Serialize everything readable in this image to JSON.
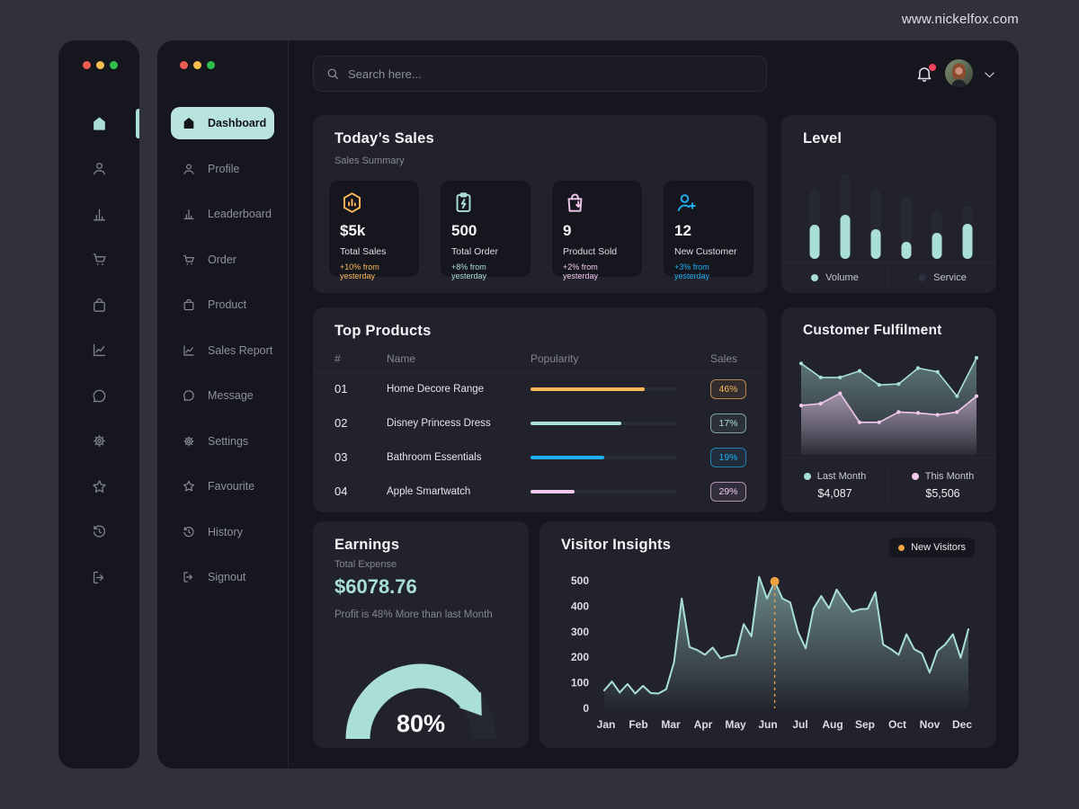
{
  "site_url": "www.nickelfox.com",
  "colors": {
    "accent": "#A9DFD8",
    "orange": "#FEB95A",
    "pink": "#F2C8ED",
    "blue": "#20AEF3",
    "alert": "#F5455C",
    "highlight": "#F0A33F"
  },
  "window_controls": [
    "close",
    "minimize",
    "zoom"
  ],
  "sidebar": {
    "items": [
      {
        "label": "Dashboard",
        "icon": "home",
        "active": true
      },
      {
        "label": "Profile",
        "icon": "user",
        "active": false
      },
      {
        "label": "Leaderboard",
        "icon": "chart-bars",
        "active": false
      },
      {
        "label": "Order",
        "icon": "cart",
        "active": false
      },
      {
        "label": "Product",
        "icon": "bag",
        "active": false
      },
      {
        "label": "Sales Report",
        "icon": "line-chart",
        "active": false
      },
      {
        "label": "Message",
        "icon": "chat",
        "active": false
      },
      {
        "label": "Settings",
        "icon": "gear",
        "active": false
      },
      {
        "label": "Favourite",
        "icon": "star",
        "active": false
      },
      {
        "label": "History",
        "icon": "history",
        "active": false
      },
      {
        "label": "Signout",
        "icon": "signout",
        "active": false
      }
    ]
  },
  "topbar": {
    "search_placeholder": "Search here..."
  },
  "today_sales": {
    "title": "Today’s Sales",
    "subtitle": "Sales Summary",
    "stats": [
      {
        "icon": "hex-chart",
        "value": "$5k",
        "label": "Total Sales",
        "delta": "+10% from yesterday",
        "color": "#FEB95A"
      },
      {
        "icon": "clipboard-bolt",
        "value": "500",
        "label": "Total Order",
        "delta": "+8% from yesterday",
        "color": "#A9DFD8"
      },
      {
        "icon": "bag-down",
        "value": "9",
        "label": "Product Sold",
        "delta": "+2% from yesterday",
        "color": "#F2C8ED"
      },
      {
        "icon": "user-plus",
        "value": "12",
        "label": "New Customer",
        "delta": "+3% from yesterday",
        "color": "#20AEF3"
      }
    ]
  },
  "level": {
    "title": "Level",
    "legend": [
      {
        "label": "Volume",
        "color": "#A9DFD8"
      },
      {
        "label": "Service",
        "color": "#2E3140"
      }
    ],
    "chart_data": {
      "type": "bar",
      "stacked": true,
      "series": [
        {
          "name": "Volume",
          "values": [
            38,
            49,
            33,
            19,
            29,
            39
          ]
        },
        {
          "name": "Service",
          "values": [
            38,
            45,
            43,
            50,
            24,
            20
          ]
        }
      ]
    }
  },
  "top_products": {
    "title": "Top Products",
    "headers": [
      "#",
      "Name",
      "Popularity",
      "Sales"
    ],
    "rows": [
      {
        "rank": "01",
        "name": "Home Decore Range",
        "popularity": 78,
        "sales": "46%",
        "color": "#FEB95A"
      },
      {
        "rank": "02",
        "name": "Disney Princess Dress",
        "popularity": 62,
        "sales": "17%",
        "color": "#A9DFD8"
      },
      {
        "rank": "03",
        "name": "Bathroom Essentials",
        "popularity": 50,
        "sales": "19%",
        "color": "#20AEF3"
      },
      {
        "rank": "04",
        "name": "Apple Smartwatch",
        "popularity": 30,
        "sales": "29%",
        "color": "#F2C8ED"
      }
    ]
  },
  "customer_fulfilment": {
    "title": "Customer Fulfilment",
    "chart_data": {
      "type": "area",
      "series": [
        {
          "name": "Last Month",
          "amount": "$4,087",
          "color": "#A9DFD8",
          "values": [
            92,
            77,
            77,
            84,
            69,
            70,
            87,
            83,
            57,
            98
          ]
        },
        {
          "name": "This Month",
          "amount": "$5,506",
          "color": "#F2C8ED",
          "values": [
            47,
            49,
            60,
            29,
            29,
            40,
            39,
            37,
            40,
            57
          ]
        }
      ]
    }
  },
  "earnings": {
    "title": "Earnings",
    "subtitle": "Total Expense",
    "amount": "$6078.76",
    "note": "Profit is 48% More than last Month",
    "gauge_percent": 80,
    "gauge_label": "80%"
  },
  "visitor_insights": {
    "title": "Visitor Insights",
    "badge": "New Visitors",
    "chart_data": {
      "type": "area",
      "title": "Visitor Insights",
      "y_ticks": [
        0,
        100,
        200,
        300,
        400,
        500
      ],
      "ylim": [
        0,
        500
      ],
      "months": [
        "Jan",
        "Feb",
        "Mar",
        "Apr",
        "May",
        "Jun",
        "Jul",
        "Aug",
        "Sep",
        "Oct",
        "Nov",
        "Dec"
      ],
      "values": [
        70,
        105,
        62,
        95,
        58,
        88,
        60,
        58,
        75,
        180,
        430,
        240,
        228,
        210,
        238,
        196,
        205,
        210,
        330,
        282,
        515,
        430,
        497,
        430,
        415,
        300,
        235,
        390,
        440,
        392,
        465,
        420,
        378,
        388,
        390,
        455,
        250,
        232,
        210,
        290,
        232,
        215,
        140,
        225,
        250,
        290,
        198,
        310
      ],
      "highlight": {
        "index": 22,
        "value": 500,
        "month": "Jun"
      }
    }
  }
}
